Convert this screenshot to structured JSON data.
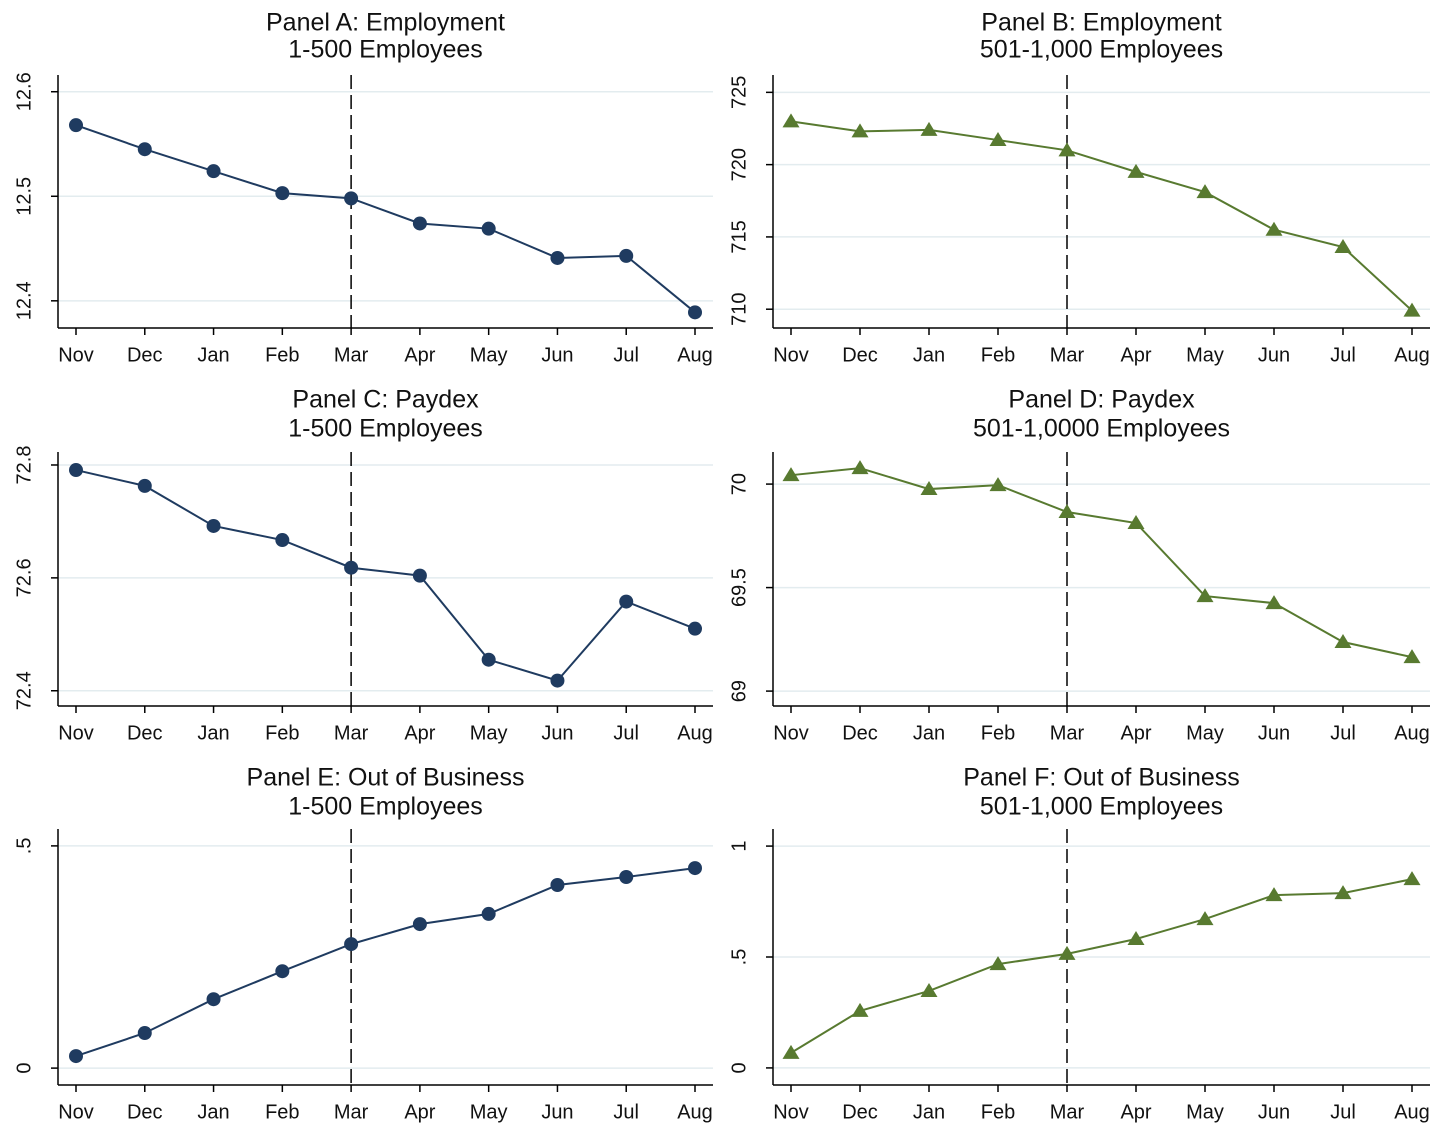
{
  "chart_data": [
    {
      "type": "line",
      "title": "Panel A: Employment",
      "subtitle": "1-500 Employees",
      "categories": [
        "Nov",
        "Dec",
        "Jan",
        "Feb",
        "Mar",
        "Apr",
        "May",
        "Jun",
        "Jul",
        "Aug"
      ],
      "series": [
        {
          "color": "#1f3b60",
          "marker": "circle",
          "values": [
            12.568,
            12.545,
            12.524,
            12.503,
            12.498,
            12.474,
            12.469,
            12.441,
            12.443,
            12.389
          ]
        }
      ],
      "ylim": [
        12.374,
        12.616
      ],
      "yticks": [
        12.4,
        12.5,
        12.6
      ],
      "grid": true,
      "reference_line": "Mar"
    },
    {
      "type": "line",
      "title": "Panel B: Employment",
      "subtitle": "501-1,000 Employees",
      "categories": [
        "Nov",
        "Dec",
        "Jan",
        "Feb",
        "Mar",
        "Apr",
        "May",
        "Jun",
        "Jul",
        "Aug"
      ],
      "series": [
        {
          "color": "#587a30",
          "marker": "triangle",
          "values": [
            722.99,
            722.3,
            722.4,
            721.7,
            720.99,
            719.5,
            718.1,
            715.5,
            714.3,
            709.9
          ]
        }
      ],
      "ylim": [
        708.7,
        726.2
      ],
      "yticks": [
        710,
        715,
        720,
        725
      ],
      "grid": true,
      "reference_line": "Mar"
    },
    {
      "type": "line",
      "title": "Panel C: Paydex",
      "subtitle": "1-500 Employees",
      "categories": [
        "Nov",
        "Dec",
        "Jan",
        "Feb",
        "Mar",
        "Apr",
        "May",
        "Jun",
        "Jul",
        "Aug"
      ],
      "series": [
        {
          "color": "#1f3b60",
          "marker": "circle",
          "values": [
            72.791,
            72.763,
            72.692,
            72.667,
            72.618,
            72.604,
            72.455,
            72.418,
            72.558,
            72.51
          ]
        }
      ],
      "ylim": [
        72.373,
        72.823
      ],
      "yticks": [
        72.4,
        72.6,
        72.8
      ],
      "grid": true,
      "reference_line": "Mar"
    },
    {
      "type": "line",
      "title": "Panel D: Paydex",
      "subtitle": "501-1,0000 Employees",
      "categories": [
        "Nov",
        "Dec",
        "Jan",
        "Feb",
        "Mar",
        "Apr",
        "May",
        "Jun",
        "Jul",
        "Aug"
      ],
      "series": [
        {
          "color": "#587a30",
          "marker": "triangle",
          "values": [
            70.043,
            70.077,
            69.976,
            69.995,
            69.865,
            69.812,
            69.459,
            69.425,
            69.237,
            69.164
          ]
        }
      ],
      "ylim": [
        68.928,
        70.155
      ],
      "yticks": [
        69,
        69.5,
        70
      ],
      "grid": true,
      "reference_line": "Mar"
    },
    {
      "type": "line",
      "title": "Panel E: Out of Business",
      "subtitle": "1-500 Employees",
      "categories": [
        "Nov",
        "Dec",
        "Jan",
        "Feb",
        "Mar",
        "Apr",
        "May",
        "Jun",
        "Jul",
        "Aug"
      ],
      "series": [
        {
          "color": "#1f3b60",
          "marker": "circle",
          "values": [
            0.027,
            0.079,
            0.155,
            0.218,
            0.279,
            0.324,
            0.347,
            0.412,
            0.43,
            0.45
          ]
        }
      ],
      "ylim": [
        -0.038,
        0.538
      ],
      "yticks": [
        0,
        {
          "value": 0.5,
          "label": ".5"
        }
      ],
      "grid": true,
      "reference_line": "Mar"
    },
    {
      "type": "line",
      "title": "Panel F: Out of Business",
      "subtitle": "501-1,000 Employees",
      "categories": [
        "Nov",
        "Dec",
        "Jan",
        "Feb",
        "Mar",
        "Apr",
        "May",
        "Jun",
        "Jul",
        "Aug"
      ],
      "series": [
        {
          "color": "#587a30",
          "marker": "triangle",
          "values": [
            0.068,
            0.257,
            0.347,
            0.468,
            0.514,
            0.581,
            0.671,
            0.779,
            0.788,
            0.851
          ]
        }
      ],
      "ylim": [
        -0.077,
        1.077
      ],
      "yticks": [
        0,
        {
          "value": 0.5,
          "label": ".5"
        },
        1
      ],
      "grid": true,
      "reference_line": "Mar"
    }
  ]
}
